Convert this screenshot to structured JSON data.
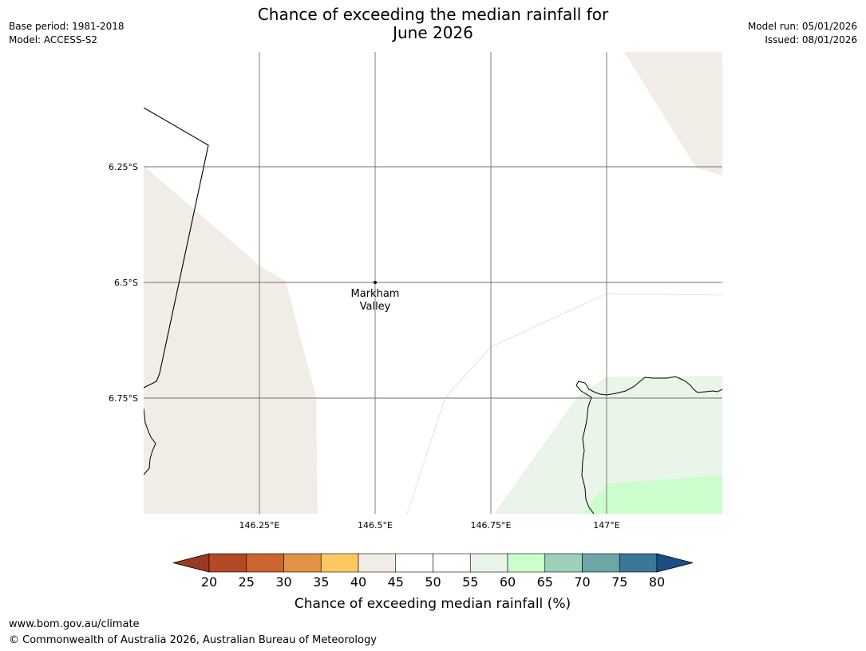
{
  "header": {
    "base_period": "Base period: 1981-2018",
    "model": "Model: ACCESS-S2",
    "model_run": "Model run: 05/01/2026",
    "issued": "Issued: 08/01/2026"
  },
  "title": {
    "line1": "Chance of exceeding the median rainfall for",
    "line2": "June 2026"
  },
  "map": {
    "lat_labels": [
      "6.25°S",
      "6.5°S",
      "6.75°S"
    ],
    "lon_labels": [
      "146.25°E",
      "146.5°E",
      "146.75°E",
      "147°E"
    ],
    "place": {
      "name_line1": "Markham",
      "name_line2": "Valley"
    }
  },
  "colorbar": {
    "title": "Chance of exceeding median rainfall (%)",
    "ticks": [
      "20",
      "25",
      "30",
      "35",
      "40",
      "45",
      "50",
      "55",
      "60",
      "65",
      "70",
      "75",
      "80"
    ],
    "colors": {
      "under": "#9a3a22",
      "bins": [
        "#b24a26",
        "#cd652f",
        "#e39345",
        "#fec962",
        "#f1ece6",
        "#ffffff",
        "#ffffff",
        "#e9f5e9",
        "#ccfdcc",
        "#9ecfb8",
        "#6ea5a6",
        "#3d7798"
      ],
      "over": "#1a4f85"
    }
  },
  "footer": {
    "url": "www.bom.gov.au/climate",
    "copyright": "© Commonwealth of Australia 2026, Australian Bureau of Meteorology"
  }
}
